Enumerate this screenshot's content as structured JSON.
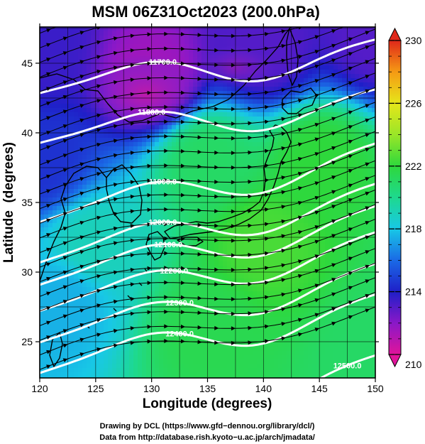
{
  "chart_data": {
    "type": "heatmap",
    "title": "MSM 06Z31Oct2023 (200.0hPa)",
    "xlabel": "Longitude (degrees)",
    "ylabel": "Latitude  (degrees)",
    "xlim": [
      120,
      150
    ],
    "ylim": [
      22.4,
      47.6
    ],
    "xticks": [
      120,
      125,
      130,
      135,
      140,
      145,
      150
    ],
    "yticks": [
      25,
      30,
      35,
      40,
      45
    ],
    "colorbar": {
      "min": 210,
      "max": 230,
      "ticks": [
        210,
        214,
        218,
        222,
        226,
        230
      ]
    },
    "temperature_field": {
      "description_units": "K",
      "samples": [
        {
          "lon": 120,
          "lat": 46,
          "value": 213.5
        },
        {
          "lon": 130,
          "lat": 44,
          "value": 211.5
        },
        {
          "lon": 140,
          "lat": 46,
          "value": 213
        },
        {
          "lon": 150,
          "lat": 47,
          "value": 213
        },
        {
          "lon": 120,
          "lat": 38,
          "value": 214.5
        },
        {
          "lon": 135,
          "lat": 38,
          "value": 221
        },
        {
          "lon": 145,
          "lat": 38,
          "value": 222
        },
        {
          "lon": 125,
          "lat": 32,
          "value": 219
        },
        {
          "lon": 140,
          "lat": 32,
          "value": 222.5
        },
        {
          "lon": 122,
          "lat": 28,
          "value": 217.5
        },
        {
          "lon": 135,
          "lat": 26,
          "value": 221.5
        },
        {
          "lon": 150,
          "lat": 24,
          "value": 221
        }
      ]
    },
    "contours": [
      {
        "label": "11700.0",
        "label_lon": 131,
        "label_lat": 45.1
      },
      {
        "label": "11800.0",
        "label_lon": 130,
        "label_lat": 41.5
      },
      {
        "label": "11900.0",
        "label_lon": 131,
        "label_lat": 36.5
      },
      {
        "label": "12000.0",
        "label_lon": 131,
        "label_lat": 33.6
      },
      {
        "label": "12100.0",
        "label_lon": 131.5,
        "label_lat": 32.0
      },
      {
        "label": "12200.0",
        "label_lon": 132,
        "label_lat": 30.1
      },
      {
        "label": "12300.0",
        "label_lon": 132.5,
        "label_lat": 27.8
      },
      {
        "label": "12400.0",
        "label_lon": 132.5,
        "label_lat": 25.6
      },
      {
        "label": "12500.0",
        "label_lon": 147.5,
        "label_lat": 23.3
      }
    ],
    "wind": {
      "prevailing_direction": "westerly to west-southwesterly",
      "representation": "streamlines with arrowheads"
    },
    "grid": true
  },
  "credits": {
    "line1": "Drawing by DCL (https://www.gfd−dennou.org/library/dcl/)",
    "line2": "Data from http://database.rish.kyoto−u.ac.jp/arch/jmadata/"
  }
}
